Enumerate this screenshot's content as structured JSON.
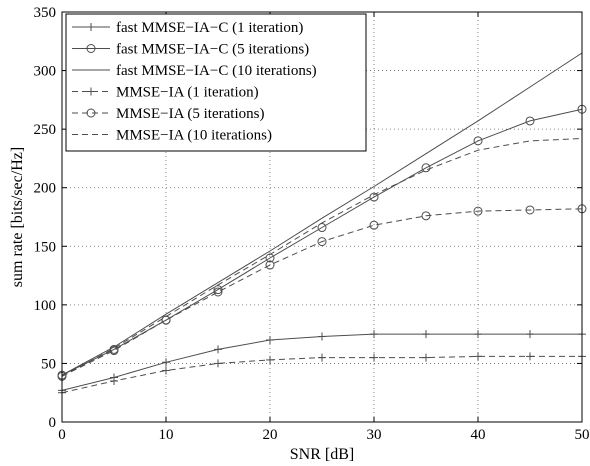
{
  "chart_data": {
    "type": "line",
    "title": "",
    "xlabel": "SNR [dB]",
    "ylabel": "sum rate [bits/sec/Hz]",
    "xlim": [
      0,
      50
    ],
    "ylim": [
      0,
      350
    ],
    "xticks": [
      0,
      10,
      20,
      30,
      40,
      50
    ],
    "yticks": [
      0,
      50,
      100,
      150,
      200,
      250,
      300,
      350
    ],
    "grid": true,
    "legend_position": "top-left",
    "series": [
      {
        "name": "fast MMSE−IA−C (1 iteration)",
        "line_style": "solid",
        "marker": "plus",
        "x": [
          0,
          5,
          10,
          15,
          20,
          25,
          30,
          35,
          40,
          45,
          50
        ],
        "y": [
          27,
          38,
          51,
          62,
          70,
          73,
          75,
          75,
          75,
          75,
          75
        ]
      },
      {
        "name": "fast MMSE−IA−C (5 iterations)",
        "line_style": "solid",
        "marker": "circle",
        "x": [
          0,
          5,
          10,
          15,
          20,
          25,
          30,
          35,
          40,
          45,
          50
        ],
        "y": [
          40,
          62,
          87,
          113,
          140,
          166,
          192,
          217,
          240,
          257,
          267
        ]
      },
      {
        "name": "fast MMSE−IA−C (10 iterations)",
        "line_style": "solid",
        "marker": "none",
        "x": [
          0,
          5,
          10,
          15,
          20,
          25,
          30,
          35,
          40,
          45,
          50
        ],
        "y": [
          40,
          64,
          92,
          119,
          146,
          174,
          201,
          229,
          257,
          286,
          315
        ]
      },
      {
        "name": "MMSE−IA (1 iteration)",
        "line_style": "dashed",
        "marker": "plus",
        "x": [
          0,
          5,
          10,
          15,
          20,
          25,
          30,
          35,
          40,
          45,
          50
        ],
        "y": [
          25,
          35,
          44,
          50,
          53,
          55,
          55,
          55,
          56,
          56,
          56
        ]
      },
      {
        "name": "MMSE−IA (5 iterations)",
        "line_style": "dashed",
        "marker": "circle",
        "x": [
          0,
          5,
          10,
          15,
          20,
          25,
          30,
          35,
          40,
          45,
          50
        ],
        "y": [
          39,
          61,
          87,
          111,
          134,
          154,
          168,
          176,
          180,
          181,
          182
        ]
      },
      {
        "name": "MMSE−IA (10 iterations)",
        "line_style": "dashed",
        "marker": "none",
        "x": [
          0,
          5,
          10,
          15,
          20,
          25,
          30,
          35,
          40,
          45,
          50
        ],
        "y": [
          39,
          63,
          90,
          117,
          143,
          170,
          194,
          215,
          232,
          240,
          242
        ]
      }
    ],
    "colors": {
      "lines": "#4d4d4d",
      "grid": "#666666",
      "axes": "#000000"
    }
  }
}
